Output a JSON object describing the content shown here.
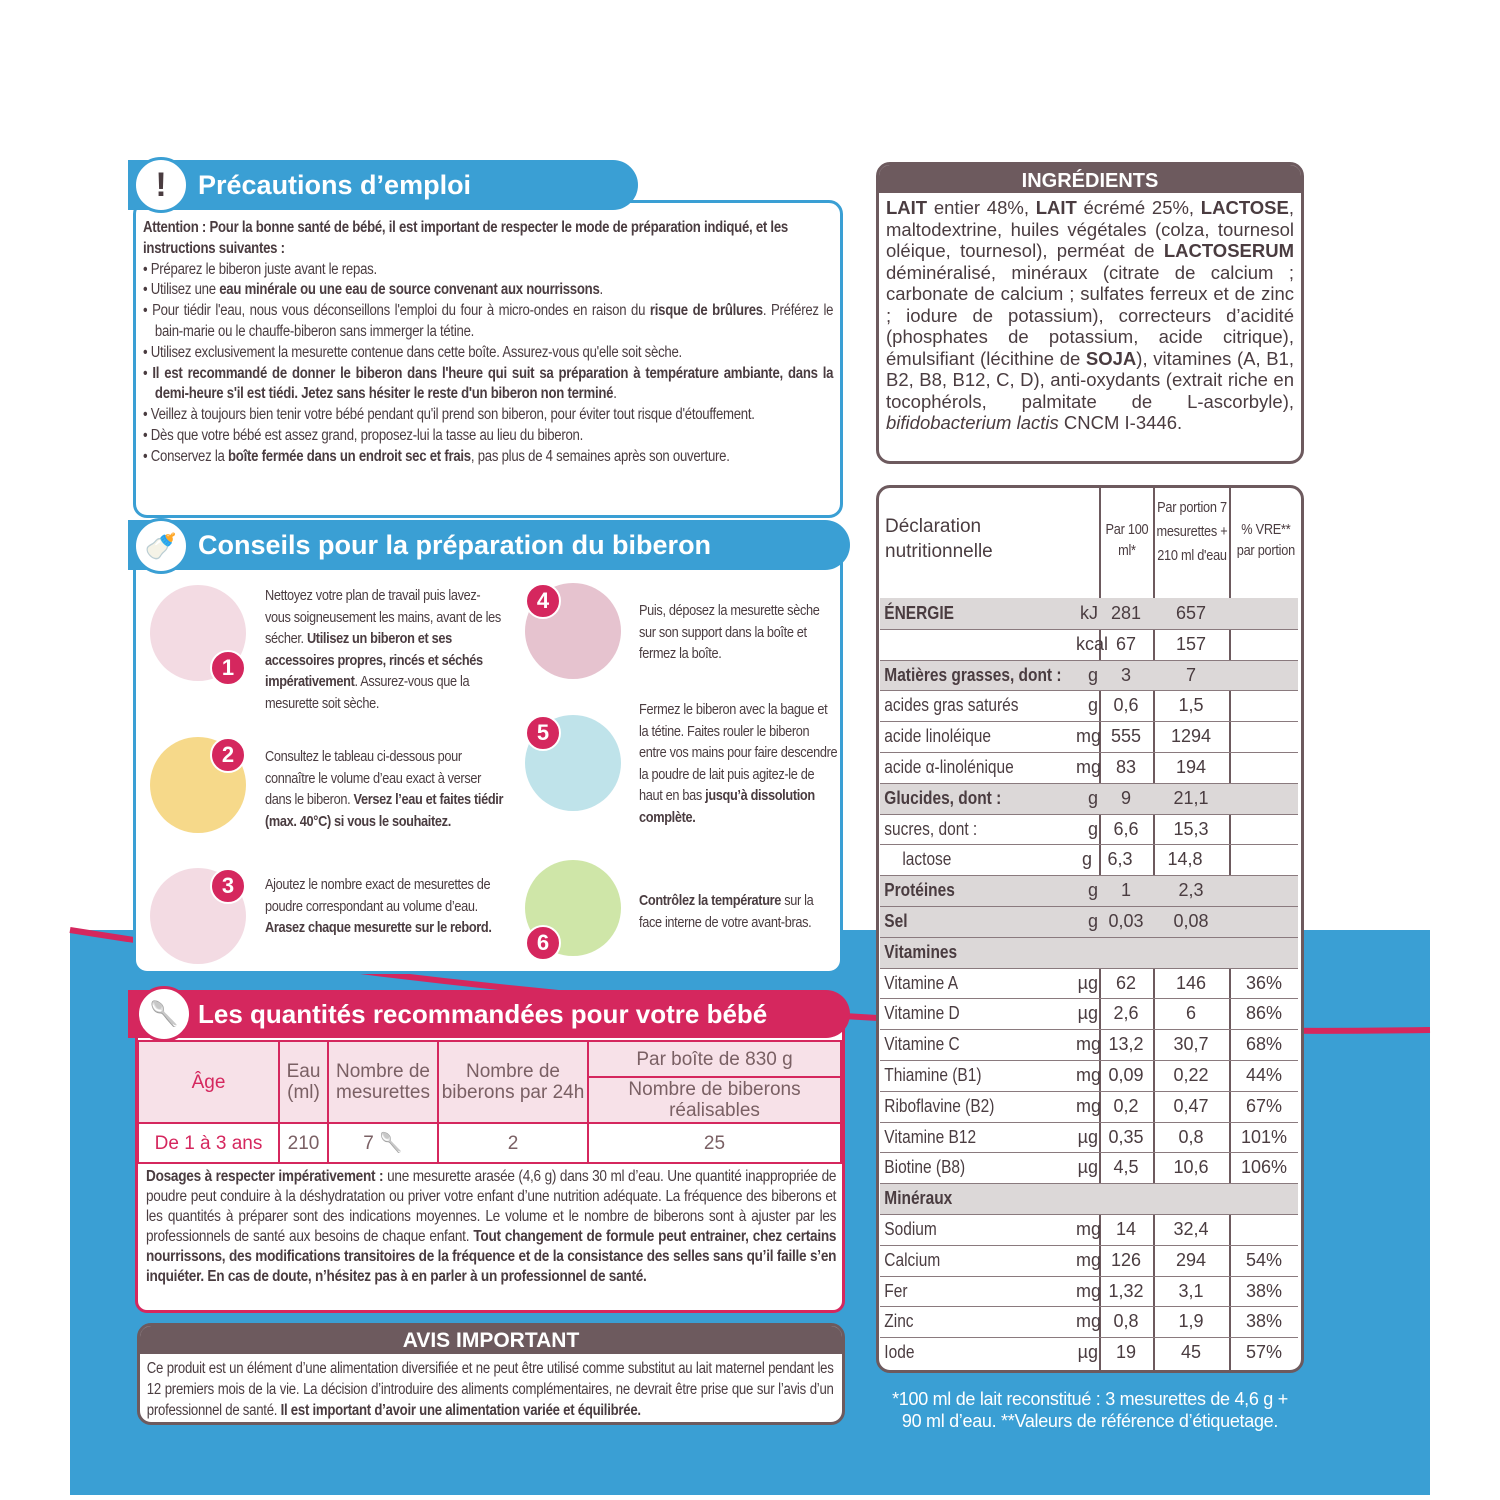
{
  "precautions": {
    "title": "Précautions d’emploi",
    "icon": "exclamation-icon",
    "intro": "Attention : Pour la bonne santé de bébé, il est important de respecter le mode de préparation indiqué, et les instructions suivantes :",
    "items": [
      {
        "pre": "Préparez le biberon juste avant le repas.",
        "bold": "",
        "post": ""
      },
      {
        "pre": "Utilisez une ",
        "bold": "eau minérale ou une eau de source convenant aux nourrissons",
        "post": "."
      },
      {
        "pre": "Pour tiédir l'eau, nous vous déconseillons l'emploi du four à micro-ondes en raison du ",
        "bold": "risque de brûlures",
        "post": ". Préférez le bain-marie ou le chauffe-biberon sans immerger la tétine."
      },
      {
        "pre": "Utilisez exclusivement la mesurette contenue dans cette boîte. Assurez-vous qu'elle soit sèche.",
        "bold": "",
        "post": ""
      },
      {
        "pre": "",
        "bold": "Il est recommandé de donner le biberon dans l'heure qui suit sa préparation à température ambiante, dans la demi-heure s'il est tiédi. Jetez sans hésiter le reste d'un biberon non terminé",
        "post": "."
      },
      {
        "pre": "Veillez à toujours bien tenir votre bébé pendant qu'il prend son biberon, pour éviter tout risque d'étouffement.",
        "bold": "",
        "post": ""
      },
      {
        "pre": "Dès que votre bébé est assez grand, proposez-lui la tasse au lieu du biberon.",
        "bold": "",
        "post": ""
      },
      {
        "pre": "Conservez la ",
        "bold": "boîte fermée dans un endroit sec et frais",
        "post": ", pas plus de 4 semaines après son ouverture."
      }
    ]
  },
  "conseils": {
    "title": "Conseils pour la préparation du biberon",
    "icon": "baby-bottle-icon",
    "steps": [
      {
        "n": "1",
        "pre": "Nettoyez votre plan de travail puis lavez-vous soigneusement les mains, avant de les sécher. ",
        "bold": "Utilisez un biberon et ses accessoires propres, rincés et séchés impérativement",
        "post": ". Assurez-vous que la mesurette soit sèche.",
        "color": "#f3dbe3"
      },
      {
        "n": "2",
        "pre": "Consultez le tableau ci-dessous pour connaître le volume d’eau exact à verser dans le biberon. ",
        "bold": "Versez l’eau et faites tiédir (max. 40°C) si vous le souhaitez.",
        "post": "",
        "color": "#f6d98a"
      },
      {
        "n": "3",
        "pre": "Ajoutez le nombre exact de mesurettes de poudre correspondant au volume d’eau. ",
        "bold": "Arasez chaque mesurette sur le rebord.",
        "post": "",
        "color": "#f3dbe3"
      },
      {
        "n": "4",
        "pre": "Puis, déposez la mesurette sèche sur son support dans la boîte et fermez la boîte.",
        "bold": "",
        "post": "",
        "color": "#e6c3cf"
      },
      {
        "n": "5",
        "pre": "Fermez le biberon avec la bague et la tétine. Faites rouler le biberon entre vos mains pour faire descendre la poudre de lait puis agitez-le de haut en bas ",
        "bold": "jusqu’à dissolution complète.",
        "post": "",
        "color": "#bfe3ea"
      },
      {
        "n": "6",
        "pre": "",
        "bold": "Contrôlez la température",
        "post": " sur la face interne de votre avant-bras.",
        "color": "#cfe6a8"
      }
    ]
  },
  "quantites": {
    "title": "Les quantités recommandées pour votre bébé",
    "icon": "measuring-scoop-icon",
    "headers": {
      "age": "Âge",
      "eau": "Eau (ml)",
      "mesurettes": "Nombre de mesurettes",
      "biberons": "Nombre de biberons par 24h",
      "boite": "Par boîte de 830 g",
      "realisables": "Nombre de biberons réalisables"
    },
    "row": {
      "age": "De 1 à 3 ans",
      "eau": "210",
      "mesurettes": "7",
      "biberons": "2",
      "realisables": "25"
    },
    "dosage_bold1": "Dosages à respecter impérativement :",
    "dosage_text1": " une mesurette arasée (4,6 g) dans 30 ml d’eau. Une quantité inappropriée de poudre peut conduire à la déshydratation ou priver votre enfant d’une nutrition adéquate. La fréquence des biberons et les quantités à préparer sont des indications moyennes. Le volume et le nombre de biberons sont à ajuster par les professionnels de santé aux besoins de chaque enfant. ",
    "dosage_bold2": "Tout changement de formule peut entrainer, chez certains nourrissons, des modifications transitoires de la fréquence et de la consistance des selles sans qu’il faille s’en inquiéter. En cas de doute, n’hésitez pas à en parler à un professionnel de santé."
  },
  "avis": {
    "title": "AVIS IMPORTANT",
    "text": "Ce produit est un élément d’une alimentation diversifiée et ne peut être utilisé comme substitut au lait maternel pendant les 12 premiers mois de la vie. La décision d’introduire des aliments complémentaires, ne devrait être prise que sur l’avis d’un professionnel de santé. ",
    "bold": "Il est important d’avoir une alimentation variée et équilibrée."
  },
  "ingredients": {
    "title": "INGRÉDIENTS",
    "parts": [
      {
        "b": "LAIT"
      },
      {
        "t": " entier 48%, "
      },
      {
        "b": "LAIT"
      },
      {
        "t": " écrémé 25%, "
      },
      {
        "b": "LACTOSE"
      },
      {
        "t": ", maltodextrine, huiles végétales (colza, tournesol oléique, tournesol), perméat de "
      },
      {
        "b": "LACTOSERUM"
      },
      {
        "t": " déminéralisé, minéraux (citrate de calcium ; carbonate de calcium ; sulfates ferreux et de zinc ; iodure de potassium), correcteurs d’acidité (phosphates de potassium, acide citrique), émulsifiant (lécithine de "
      },
      {
        "b": "SOJA"
      },
      {
        "t": "), vitamines (A, B1, B2, B8, B12, C, D), anti-oxydants (extrait riche en tocophérols, palmitate de L-ascorbyle), "
      },
      {
        "i": "bifidobacterium lactis"
      },
      {
        "t": " CNCM I-3446."
      }
    ]
  },
  "nutrition": {
    "headers": {
      "label": "Déclaration nutritionnelle",
      "per100": "Par 100 ml*",
      "portion": "Par portion 7 mesurettes + 210 ml d'eau",
      "vre": "% VRE** par portion"
    },
    "rows": [
      {
        "label": "ÉNERGIE",
        "unit": "kJ",
        "per100": "281",
        "portion": "657",
        "vre": "",
        "shaded": true
      },
      {
        "label": "",
        "unit": "kcal",
        "per100": "67",
        "portion": "157",
        "vre": "",
        "shaded": false
      },
      {
        "label": "Matières grasses, dont :",
        "unit": "g",
        "per100": "3",
        "portion": "7",
        "vre": "",
        "shaded": true
      },
      {
        "label": "acides gras saturés",
        "unit": "g",
        "per100": "0,6",
        "portion": "1,5",
        "vre": ""
      },
      {
        "label": "acide linoléique",
        "unit": "mg",
        "per100": "555",
        "portion": "1294",
        "vre": ""
      },
      {
        "label": "acide α-linolénique",
        "unit": "mg",
        "per100": "83",
        "portion": "194",
        "vre": ""
      },
      {
        "label": "Glucides, dont :",
        "unit": "g",
        "per100": "9",
        "portion": "21,1",
        "vre": "",
        "shaded": true
      },
      {
        "label": "sucres, dont :",
        "unit": "g",
        "per100": "6,6",
        "portion": "15,3",
        "vre": ""
      },
      {
        "label": "lactose",
        "unit": "g",
        "per100": "6,3",
        "portion": "14,8",
        "vre": "",
        "indent": true
      },
      {
        "label": "Protéines",
        "unit": "g",
        "per100": "1",
        "portion": "2,3",
        "vre": "",
        "shaded": true
      },
      {
        "label": "Sel",
        "unit": "g",
        "per100": "0,03",
        "portion": "0,08",
        "vre": "",
        "shaded": true
      },
      {
        "label": "Vitamines",
        "unit": "",
        "per100": "",
        "portion": "",
        "vre": "",
        "shaded": true
      },
      {
        "label": "Vitamine A",
        "unit": "µg",
        "per100": "62",
        "portion": "146",
        "vre": "36%"
      },
      {
        "label": "Vitamine D",
        "unit": "µg",
        "per100": "2,6",
        "portion": "6",
        "vre": "86%"
      },
      {
        "label": "Vitamine C",
        "unit": "mg",
        "per100": "13,2",
        "portion": "30,7",
        "vre": "68%"
      },
      {
        "label": "Thiamine (B1)",
        "unit": "mg",
        "per100": "0,09",
        "portion": "0,22",
        "vre": "44%"
      },
      {
        "label": "Riboflavine (B2)",
        "unit": "mg",
        "per100": "0,2",
        "portion": "0,47",
        "vre": "67%"
      },
      {
        "label": "Vitamine B12",
        "unit": "µg",
        "per100": "0,35",
        "portion": "0,8",
        "vre": "101%"
      },
      {
        "label": "Biotine (B8)",
        "unit": "µg",
        "per100": "4,5",
        "portion": "10,6",
        "vre": "106%"
      },
      {
        "label": "Minéraux",
        "unit": "",
        "per100": "",
        "portion": "",
        "vre": "",
        "shaded": true
      },
      {
        "label": "Sodium",
        "unit": "mg",
        "per100": "14",
        "portion": "32,4",
        "vre": ""
      },
      {
        "label": "Calcium",
        "unit": "mg",
        "per100": "126",
        "portion": "294",
        "vre": "54%"
      },
      {
        "label": "Fer",
        "unit": "mg",
        "per100": "1,32",
        "portion": "3,1",
        "vre": "38%"
      },
      {
        "label": "Zinc",
        "unit": "mg",
        "per100": "0,8",
        "portion": "1,9",
        "vre": "38%"
      },
      {
        "label": "Iode",
        "unit": "µg",
        "per100": "19",
        "portion": "45",
        "vre": "57%"
      }
    ],
    "footnote": "*100 ml de lait reconstitué : 3 mesurettes de 4,6 g + 90 ml d’eau. **Valeurs de référence d’étiquetage."
  },
  "colors": {
    "blue": "#3a9fd4",
    "pink": "#d5275e",
    "brown": "#6d5a5e"
  }
}
